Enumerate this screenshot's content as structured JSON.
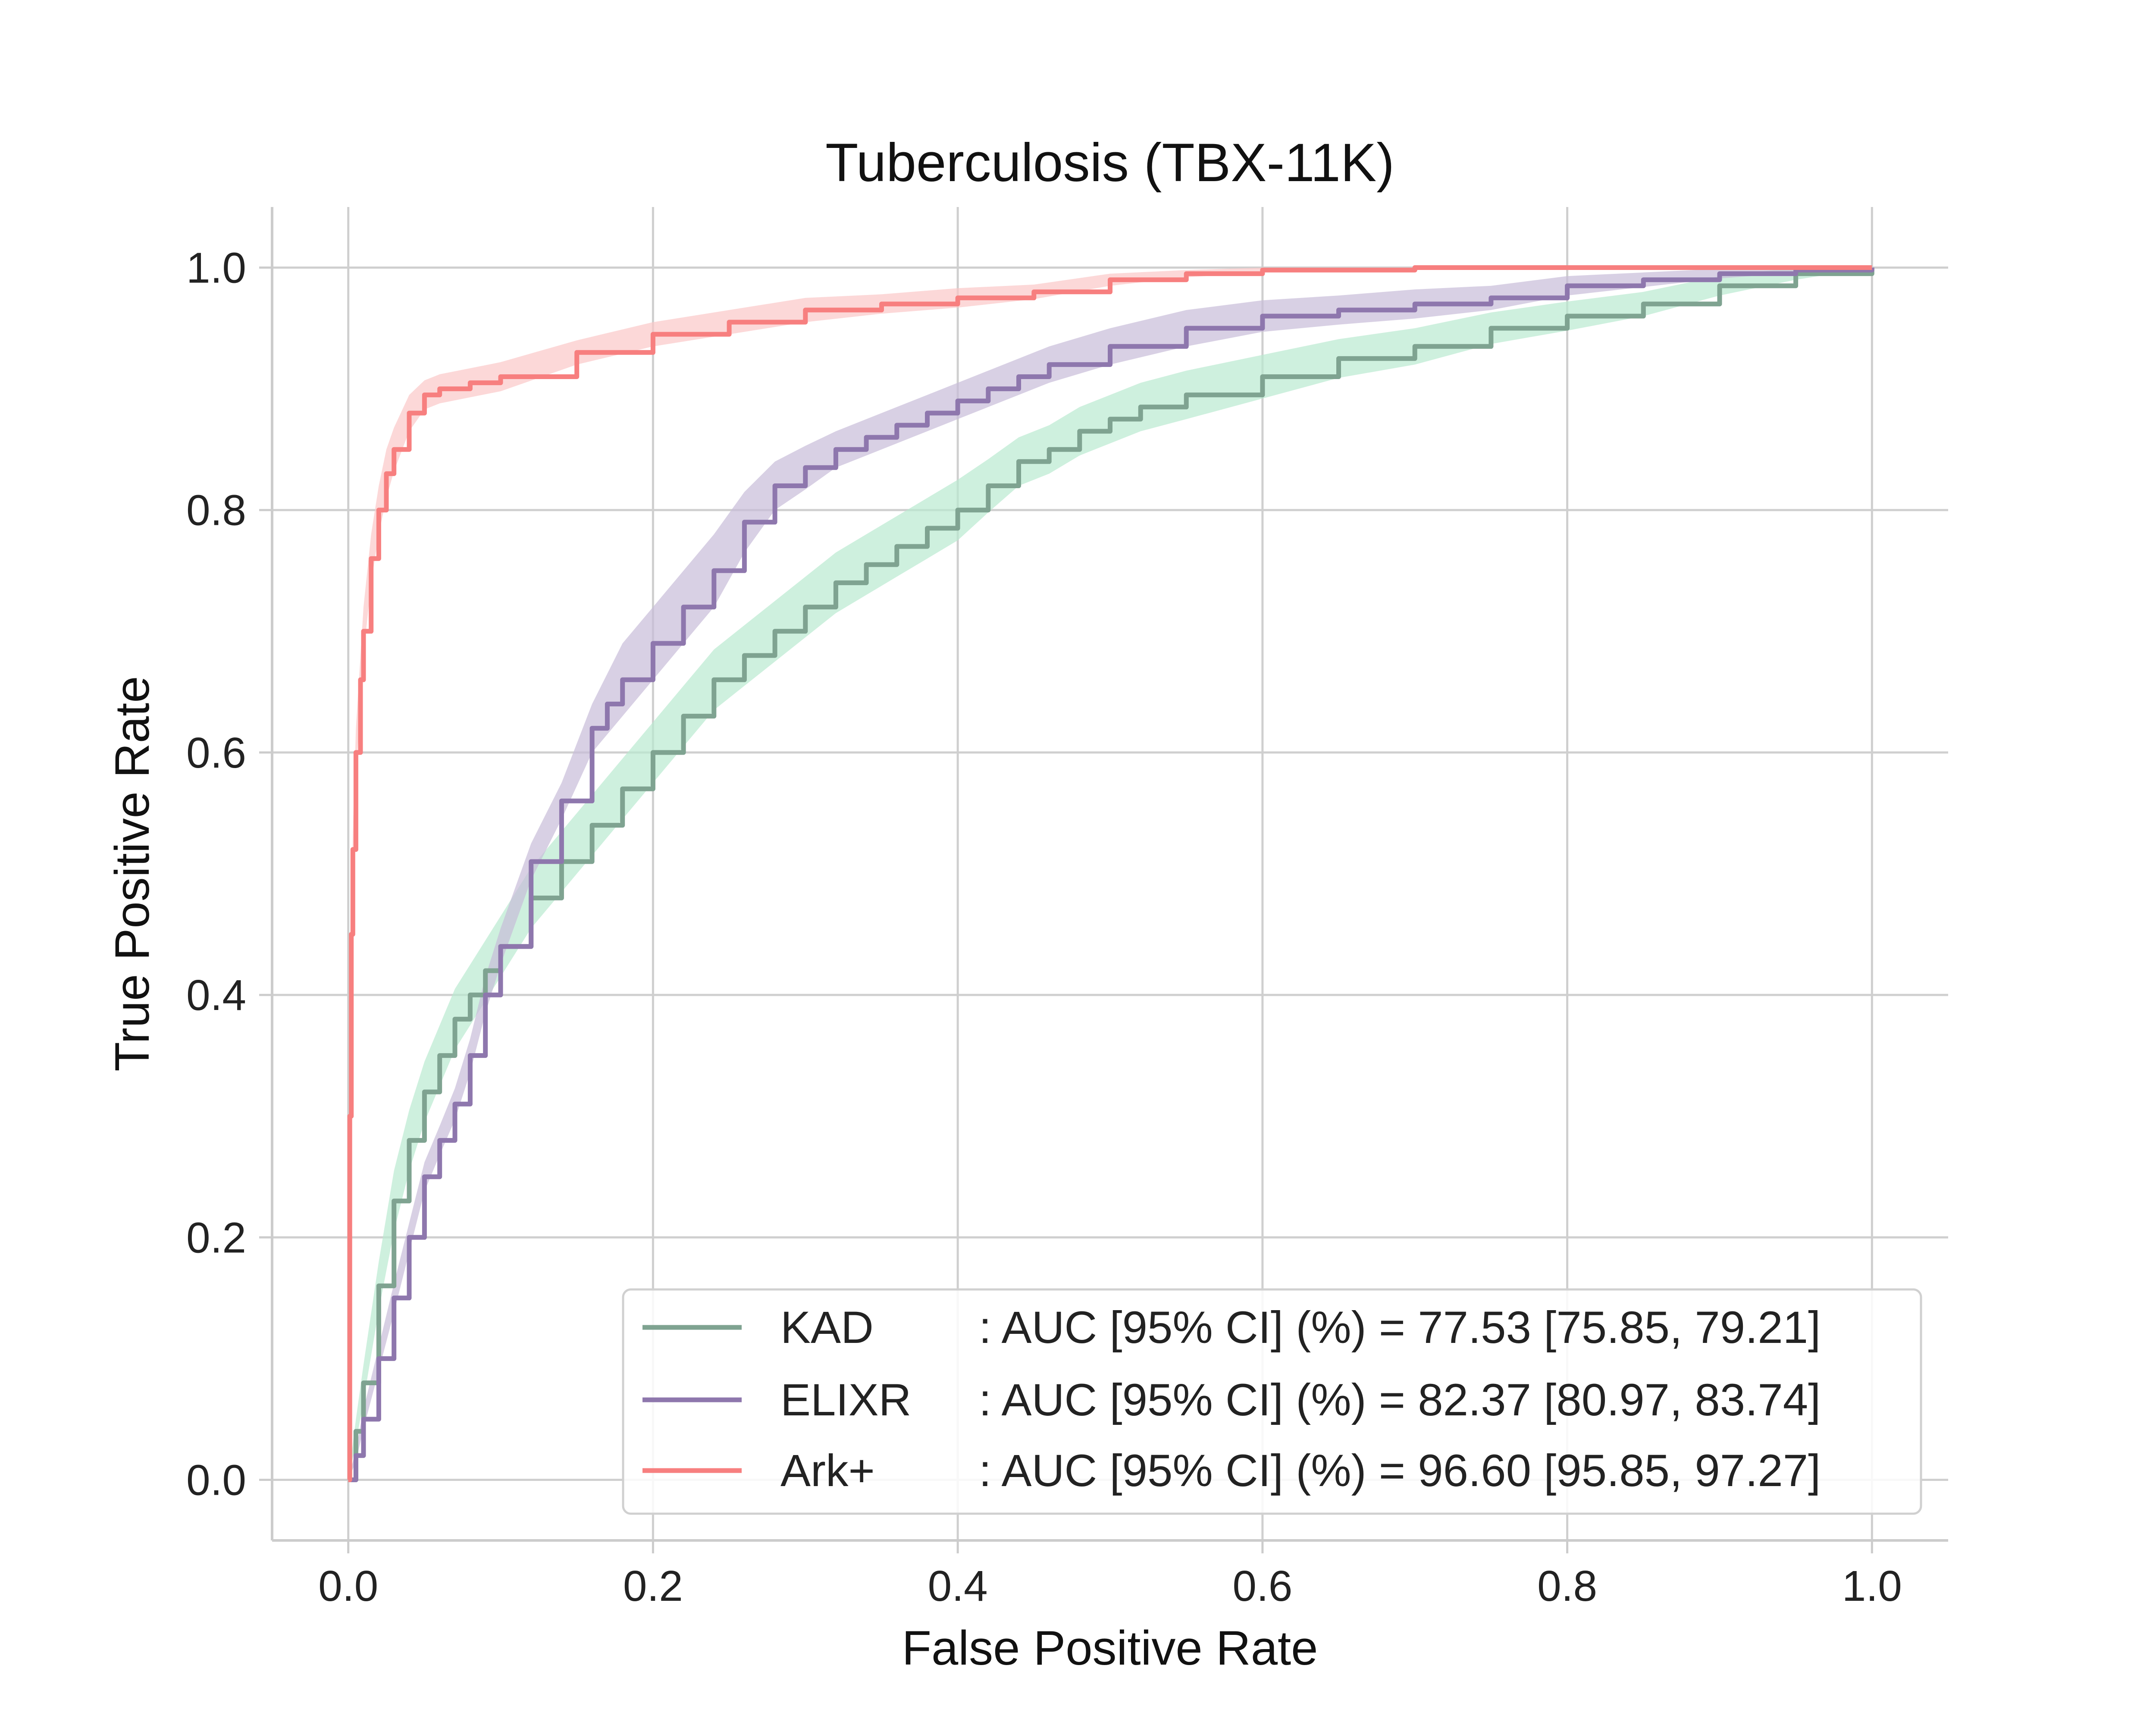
{
  "chart_data": {
    "type": "line",
    "title": "Tuberculosis (TBX-11K)",
    "xlabel": "False Positive Rate",
    "ylabel": "True Positive Rate",
    "xlim": [
      -0.05,
      1.05
    ],
    "ylim": [
      -0.05,
      1.05
    ],
    "xticks": [
      "0.0",
      "0.2",
      "0.4",
      "0.6",
      "0.8",
      "1.0"
    ],
    "yticks": [
      "0.0",
      "0.2",
      "0.4",
      "0.6",
      "0.8",
      "1.0"
    ],
    "grid": true,
    "legend_position": "lower-right",
    "series": [
      {
        "name": "KAD",
        "auc_text": ": AUC [95% CI] (%) = 77.53 [75.85, 79.21]",
        "color": "#7fa391",
        "band_color": "#b9ead0",
        "x": [
          0,
          0.005,
          0.01,
          0.02,
          0.03,
          0.04,
          0.05,
          0.06,
          0.07,
          0.08,
          0.09,
          0.1,
          0.12,
          0.14,
          0.16,
          0.18,
          0.2,
          0.22,
          0.24,
          0.26,
          0.28,
          0.3,
          0.32,
          0.34,
          0.36,
          0.38,
          0.4,
          0.42,
          0.44,
          0.46,
          0.48,
          0.5,
          0.52,
          0.55,
          0.6,
          0.65,
          0.7,
          0.75,
          0.8,
          0.85,
          0.9,
          0.95,
          1.0
        ],
        "y": [
          0,
          0.04,
          0.08,
          0.16,
          0.23,
          0.28,
          0.32,
          0.35,
          0.38,
          0.4,
          0.42,
          0.44,
          0.48,
          0.51,
          0.54,
          0.57,
          0.6,
          0.63,
          0.66,
          0.68,
          0.7,
          0.72,
          0.74,
          0.755,
          0.77,
          0.785,
          0.8,
          0.82,
          0.84,
          0.85,
          0.865,
          0.875,
          0.885,
          0.895,
          0.91,
          0.925,
          0.935,
          0.95,
          0.96,
          0.97,
          0.985,
          0.995,
          1.0
        ],
        "ci_half_width": [
          0,
          0.01,
          0.015,
          0.02,
          0.025,
          0.025,
          0.025,
          0.025,
          0.025,
          0.025,
          0.025,
          0.025,
          0.025,
          0.025,
          0.025,
          0.025,
          0.025,
          0.025,
          0.025,
          0.025,
          0.025,
          0.025,
          0.025,
          0.025,
          0.025,
          0.025,
          0.025,
          0.022,
          0.02,
          0.02,
          0.02,
          0.02,
          0.02,
          0.02,
          0.018,
          0.016,
          0.015,
          0.013,
          0.012,
          0.01,
          0.008,
          0.005,
          0
        ]
      },
      {
        "name": "ELIXR",
        "auc_text": ": AUC [95% CI] (%) = 82.37 [80.97, 83.74]",
        "color": "#8e77ad",
        "band_color": "#c8bcd9",
        "x": [
          0,
          0.005,
          0.01,
          0.02,
          0.03,
          0.04,
          0.05,
          0.06,
          0.07,
          0.08,
          0.09,
          0.1,
          0.12,
          0.14,
          0.16,
          0.17,
          0.18,
          0.2,
          0.22,
          0.24,
          0.26,
          0.28,
          0.3,
          0.32,
          0.34,
          0.36,
          0.38,
          0.4,
          0.42,
          0.44,
          0.46,
          0.5,
          0.55,
          0.6,
          0.65,
          0.7,
          0.75,
          0.8,
          0.85,
          0.9,
          0.95,
          1.0
        ],
        "y": [
          0,
          0.02,
          0.05,
          0.1,
          0.15,
          0.2,
          0.25,
          0.28,
          0.31,
          0.35,
          0.4,
          0.44,
          0.51,
          0.56,
          0.62,
          0.64,
          0.66,
          0.69,
          0.72,
          0.75,
          0.79,
          0.82,
          0.835,
          0.85,
          0.86,
          0.87,
          0.88,
          0.89,
          0.9,
          0.91,
          0.92,
          0.935,
          0.95,
          0.96,
          0.965,
          0.97,
          0.975,
          0.985,
          0.99,
          0.995,
          0.998,
          1.0
        ],
        "ci_half_width": [
          0,
          0.005,
          0.008,
          0.01,
          0.012,
          0.012,
          0.012,
          0.012,
          0.013,
          0.014,
          0.015,
          0.015,
          0.015,
          0.015,
          0.02,
          0.025,
          0.03,
          0.03,
          0.03,
          0.03,
          0.025,
          0.02,
          0.018,
          0.015,
          0.015,
          0.015,
          0.015,
          0.015,
          0.015,
          0.015,
          0.015,
          0.015,
          0.015,
          0.013,
          0.012,
          0.012,
          0.01,
          0.008,
          0.006,
          0.004,
          0.002,
          0
        ]
      },
      {
        "name": "Ark+",
        "auc_text": ": AUC [95% CI] (%) = 96.60 [95.85, 97.27]",
        "color": "#f77f7f",
        "band_color": "#fbc7c7",
        "x": [
          0,
          0.001,
          0.002,
          0.003,
          0.005,
          0.008,
          0.01,
          0.015,
          0.02,
          0.025,
          0.03,
          0.04,
          0.05,
          0.06,
          0.08,
          0.1,
          0.15,
          0.2,
          0.25,
          0.3,
          0.35,
          0.4,
          0.45,
          0.5,
          0.55,
          0.6,
          0.7,
          0.8,
          0.9,
          1.0
        ],
        "y": [
          0,
          0.3,
          0.45,
          0.52,
          0.6,
          0.66,
          0.7,
          0.76,
          0.8,
          0.83,
          0.85,
          0.88,
          0.895,
          0.9,
          0.905,
          0.91,
          0.93,
          0.945,
          0.955,
          0.965,
          0.97,
          0.975,
          0.98,
          0.99,
          0.995,
          0.998,
          1.0,
          1.0,
          1.0,
          1.0
        ],
        "ci_half_width": [
          0,
          0.01,
          0.015,
          0.015,
          0.02,
          0.02,
          0.02,
          0.02,
          0.02,
          0.02,
          0.018,
          0.015,
          0.012,
          0.012,
          0.012,
          0.012,
          0.01,
          0.01,
          0.01,
          0.01,
          0.008,
          0.008,
          0.006,
          0.005,
          0.003,
          0.002,
          0,
          0,
          0,
          0
        ]
      }
    ]
  }
}
